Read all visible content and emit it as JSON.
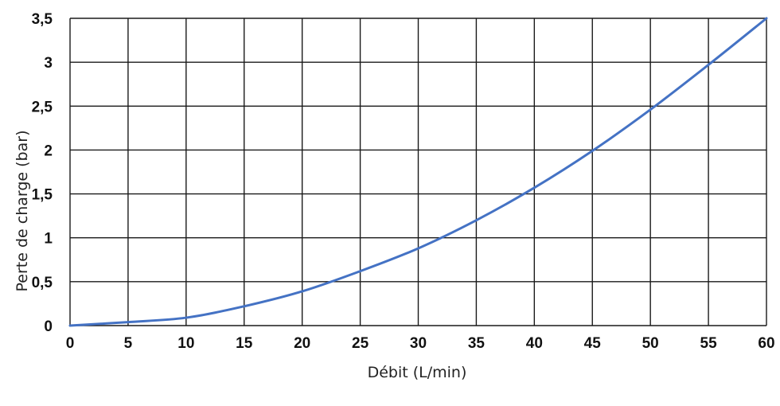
{
  "chart_data": {
    "type": "line",
    "title": "",
    "xlabel": "Débit (L/min)",
    "ylabel": "Perte de charge (bar)",
    "xlim": [
      0,
      60
    ],
    "ylim": [
      0,
      3.5
    ],
    "x_ticks": [
      "0",
      "5",
      "10",
      "15",
      "20",
      "25",
      "30",
      "35",
      "40",
      "45",
      "50",
      "55",
      "60"
    ],
    "y_ticks": [
      "0",
      "0,5",
      "1",
      "1,5",
      "2",
      "2,5",
      "3",
      "3,5"
    ],
    "grid": true,
    "legend": "none",
    "series": [
      {
        "color": "#4472c4",
        "x": [
          0,
          5,
          10,
          15,
          20,
          25,
          30,
          35,
          40,
          45,
          50,
          55,
          60
        ],
        "y": [
          0,
          0.04,
          0.09,
          0.22,
          0.39,
          0.62,
          0.88,
          1.2,
          1.57,
          1.99,
          2.46,
          2.97,
          3.5
        ]
      }
    ]
  }
}
